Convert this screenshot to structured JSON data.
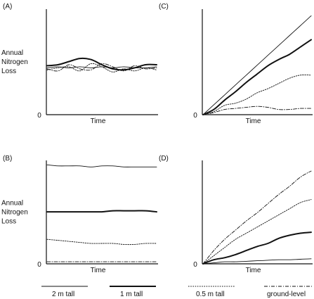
{
  "chart_data": [
    {
      "panel": "(A)",
      "type": "line",
      "ylabel": [
        "Annual",
        "Nitrogen",
        "Loss"
      ],
      "xlabel": "Time",
      "y_origin_label": "0",
      "ylim": [
        0,
        10
      ],
      "series": [
        {
          "name": "2 m tall",
          "x": [
            0,
            1,
            2,
            3,
            4,
            5,
            6,
            7,
            8,
            9,
            10
          ],
          "values": [
            4.5,
            4.6,
            4.5,
            4.6,
            4.5,
            4.6,
            4.5,
            4.6,
            4.5,
            4.5,
            4.6
          ]
        },
        {
          "name": "1 m tall",
          "x": [
            0,
            1,
            2,
            3,
            4,
            5,
            6,
            7,
            8,
            9,
            10
          ],
          "values": [
            4.7,
            4.8,
            5.1,
            5.4,
            5.3,
            4.8,
            4.4,
            4.3,
            4.5,
            4.8,
            4.8
          ]
        },
        {
          "name": "0.5 m tall",
          "x": [
            0,
            1,
            2,
            3,
            4,
            5,
            6,
            7,
            8,
            9,
            10
          ],
          "values": [
            4.3,
            4.5,
            4.6,
            4.2,
            4.9,
            4.6,
            4.1,
            4.4,
            4.2,
            4.5,
            4.3
          ]
        },
        {
          "name": "ground-level",
          "x": [
            0,
            1,
            2,
            3,
            4,
            5,
            6,
            7,
            8,
            9,
            10
          ],
          "values": [
            4.4,
            4.2,
            4.8,
            4.4,
            4.3,
            4.9,
            4.6,
            4.2,
            4.7,
            4.4,
            4.5
          ]
        }
      ]
    },
    {
      "panel": "(B)",
      "type": "line",
      "ylabel": [
        "Annual",
        "Nitrogen",
        "Loss"
      ],
      "xlabel": "Time",
      "y_origin_label": "0",
      "ylim": [
        0,
        10
      ],
      "series": [
        {
          "name": "2 m tall",
          "x": [
            0,
            1,
            2,
            3,
            4,
            5,
            6,
            7,
            8,
            9,
            10
          ],
          "values": [
            9.7,
            9.6,
            9.6,
            9.6,
            9.5,
            9.6,
            9.6,
            9.5,
            9.5,
            9.5,
            9.5
          ]
        },
        {
          "name": "1 m tall",
          "x": [
            0,
            1,
            2,
            3,
            4,
            5,
            6,
            7,
            8,
            9,
            10
          ],
          "values": [
            5.1,
            5.1,
            5.1,
            5.1,
            5.1,
            5.1,
            5.2,
            5.2,
            5.2,
            5.2,
            5.1
          ]
        },
        {
          "name": "0.5 m tall",
          "x": [
            0,
            1,
            2,
            3,
            4,
            5,
            6,
            7,
            8,
            9,
            10
          ],
          "values": [
            2.4,
            2.3,
            2.2,
            2.1,
            2.0,
            2.0,
            2.0,
            1.9,
            1.9,
            2.0,
            2.0
          ]
        },
        {
          "name": "ground-level",
          "x": [
            0,
            1,
            2,
            3,
            4,
            5,
            6,
            7,
            8,
            9,
            10
          ],
          "values": [
            0.2,
            0.2,
            0.2,
            0.2,
            0.2,
            0.2,
            0.2,
            0.2,
            0.2,
            0.2,
            0.2
          ]
        }
      ]
    },
    {
      "panel": "(C)",
      "type": "line",
      "xlabel": "Time",
      "y_origin_label": "0",
      "ylim": [
        0,
        10
      ],
      "series": [
        {
          "name": "2 m tall",
          "x": [
            0,
            1,
            2,
            3,
            4,
            5,
            6,
            7,
            8,
            9,
            10
          ],
          "values": [
            0,
            0.95,
            1.9,
            2.85,
            3.8,
            4.75,
            5.7,
            6.65,
            7.6,
            8.55,
            9.5
          ]
        },
        {
          "name": "1 m tall",
          "x": [
            0,
            1,
            2,
            3,
            4,
            5,
            6,
            7,
            8,
            9,
            10
          ],
          "values": [
            0,
            0.5,
            1.4,
            2.2,
            3.1,
            3.9,
            4.7,
            5.3,
            5.8,
            6.5,
            7.2
          ]
        },
        {
          "name": "0.5 m tall",
          "x": [
            0,
            1,
            2,
            3,
            4,
            5,
            6,
            7,
            8,
            9,
            10
          ],
          "values": [
            0,
            0.3,
            0.9,
            1.1,
            1.5,
            2.1,
            2.5,
            3.0,
            3.5,
            3.8,
            3.8
          ]
        },
        {
          "name": "ground-level",
          "x": [
            0,
            1,
            2,
            3,
            4,
            5,
            6,
            7,
            8,
            9,
            10
          ],
          "values": [
            0,
            0.2,
            0.5,
            0.6,
            0.7,
            0.8,
            0.7,
            0.5,
            0.5,
            0.6,
            0.6
          ]
        }
      ]
    },
    {
      "panel": "(D)",
      "type": "line",
      "xlabel": "Time",
      "y_origin_label": "0",
      "ylim": [
        0,
        10
      ],
      "series": [
        {
          "name": "2 m tall",
          "x": [
            0,
            1,
            2,
            3,
            4,
            5,
            6,
            7,
            8,
            9,
            10
          ],
          "values": [
            0,
            0.1,
            0.2,
            0.2,
            0.25,
            0.3,
            0.35,
            0.4,
            0.4,
            0.45,
            0.5
          ]
        },
        {
          "name": "1 m tall",
          "x": [
            0,
            1,
            2,
            3,
            4,
            5,
            6,
            7,
            8,
            9,
            10
          ],
          "values": [
            0,
            0.4,
            0.6,
            0.9,
            1.3,
            1.7,
            2.0,
            2.5,
            2.8,
            3.0,
            3.1
          ]
        },
        {
          "name": "0.5 m tall",
          "x": [
            0,
            1,
            2,
            3,
            4,
            5,
            6,
            7,
            8,
            9,
            10
          ],
          "values": [
            0,
            0.8,
            1.6,
            2.4,
            3.0,
            3.6,
            4.2,
            4.8,
            5.4,
            6.0,
            6.3
          ]
        },
        {
          "name": "ground-level",
          "x": [
            0,
            1,
            2,
            3,
            4,
            5,
            6,
            7,
            8,
            9,
            10
          ],
          "values": [
            0,
            1.3,
            2.4,
            3.3,
            4.2,
            5.0,
            5.9,
            6.8,
            7.6,
            8.5,
            9.1
          ]
        }
      ]
    }
  ],
  "legend": [
    {
      "name": "2 m tall",
      "style": "thin-solid"
    },
    {
      "name": "1 m tall",
      "style": "thick-solid"
    },
    {
      "name": "0.5 m tall",
      "style": "dotted"
    },
    {
      "name": "ground-level",
      "style": "dash-dot"
    }
  ],
  "colors": {
    "ink": "#111111",
    "background": "#ffffff"
  }
}
